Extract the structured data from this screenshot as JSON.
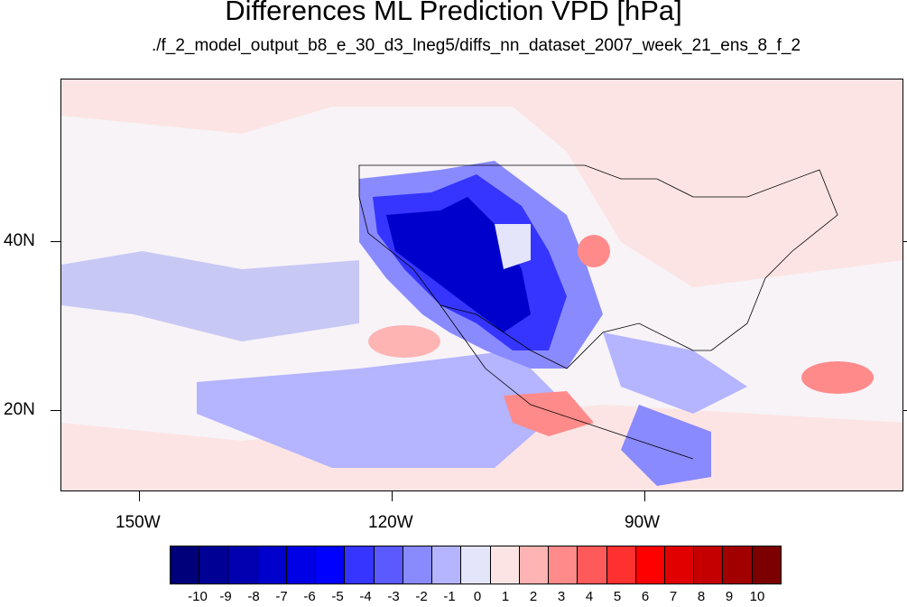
{
  "title": "Differences ML Prediction VPD [hPa]",
  "subtitle": "./f_2_model_output_b8_e_30_d3_lneg5/diffs_nn_dataset_2007_week_21_ens_8_f_2",
  "map": {
    "lon_labels": [
      "150W",
      "120W",
      "90W"
    ],
    "lat_labels": [
      "40N",
      "20N"
    ],
    "lon_range": [
      -159,
      -60
    ],
    "lat_range": [
      10,
      59
    ]
  },
  "colorbar": {
    "labels": [
      "-10",
      "-9",
      "-8",
      "-7",
      "-6",
      "-5",
      "-4",
      "-3",
      "-2",
      "-1",
      "0",
      "1",
      "2",
      "3",
      "4",
      "5",
      "6",
      "7",
      "8",
      "9",
      "10"
    ],
    "colors": [
      "#00007a",
      "#000094",
      "#0000b0",
      "#0000cc",
      "#0000e6",
      "#0000ff",
      "#3535ff",
      "#5a5aff",
      "#8a8aff",
      "#b4b4ff",
      "#e4e4fb",
      "#fde4e4",
      "#ffb4b4",
      "#ff8a8a",
      "#ff5a5a",
      "#ff3030",
      "#ff0000",
      "#e00000",
      "#c40000",
      "#a20000",
      "#7c0000"
    ]
  }
}
